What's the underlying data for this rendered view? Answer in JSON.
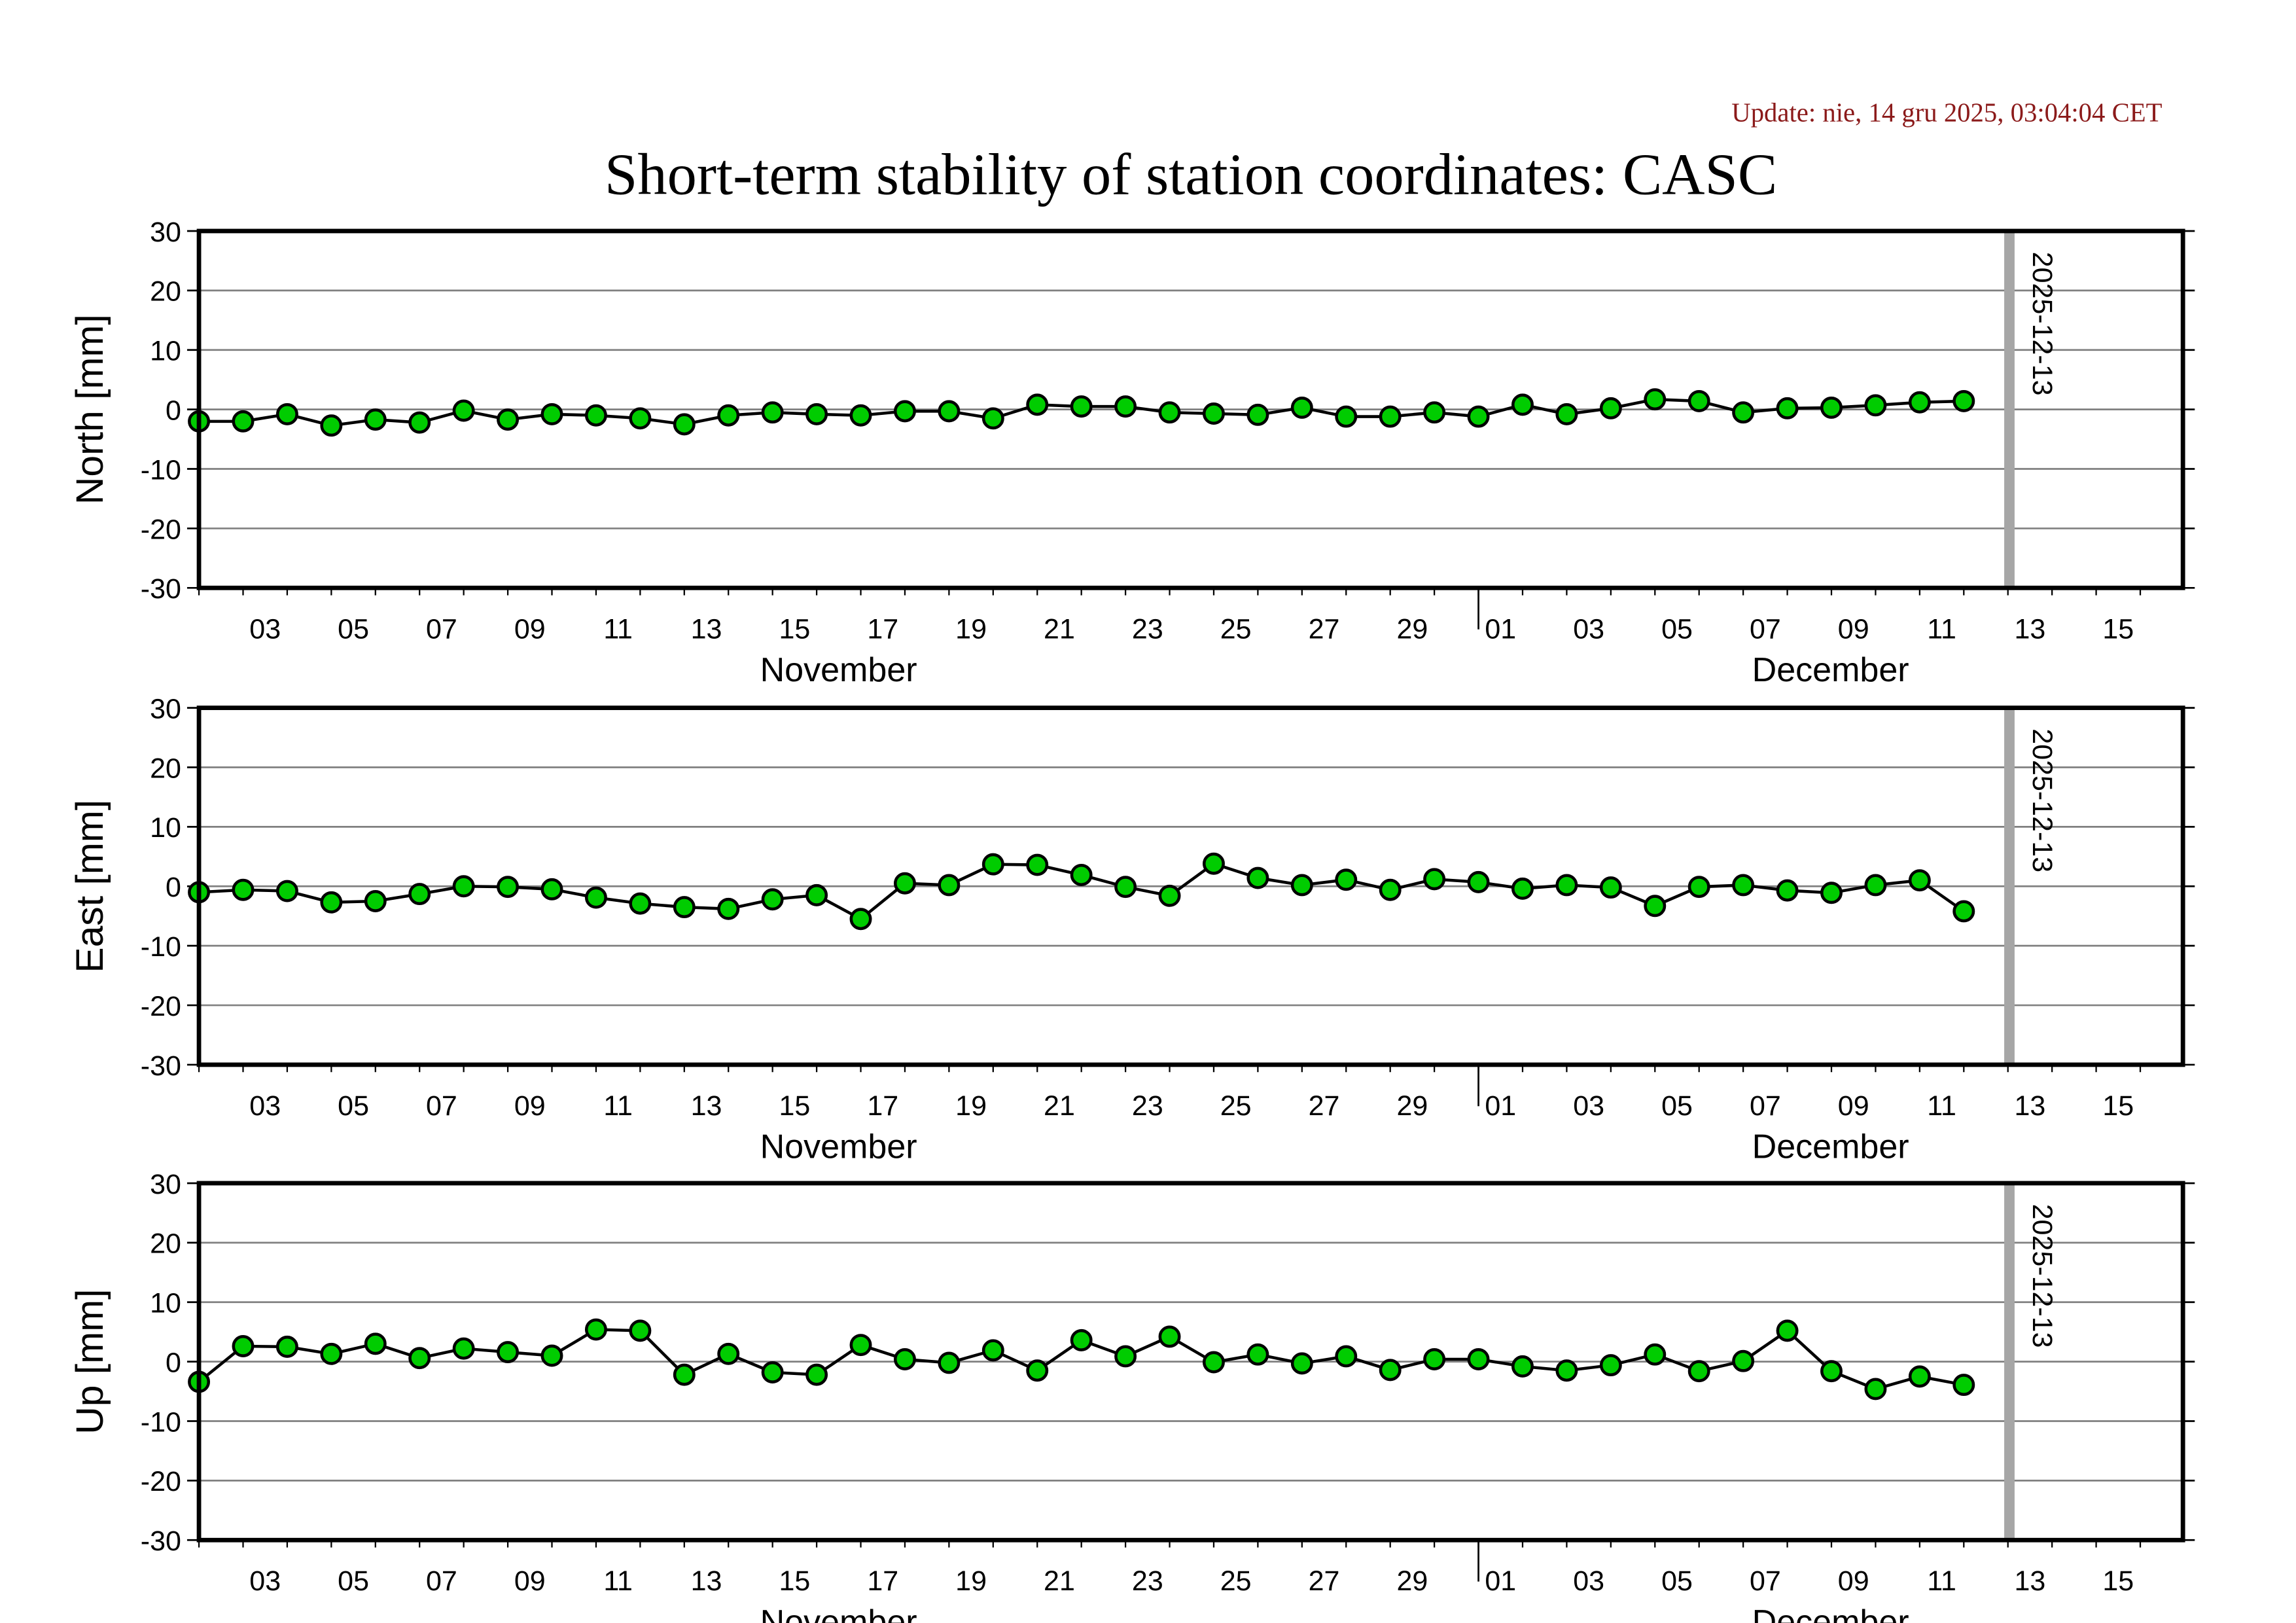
{
  "update_text": "Update: nie, 14 gru 2025, 03:04:04 CET",
  "colors": {
    "update": "#8b1a1a",
    "marker": "#00cc00",
    "grid": "#808080",
    "marker_line": "#a6a6a6"
  },
  "chart_data": [
    {
      "type": "line",
      "title": "Short-term stability of station coordinates: CASC",
      "ylabel": "North [mm]",
      "ylim": [
        -30,
        30
      ],
      "yticks": [
        "30",
        "20",
        "10",
        "0",
        "-10",
        "-20",
        "-30"
      ],
      "x_start": "2025-11-02",
      "x_end": "2025-12-16",
      "xtick_labels": [
        "03",
        "05",
        "07",
        "09",
        "11",
        "13",
        "15",
        "17",
        "19",
        "21",
        "23",
        "25",
        "27",
        "29",
        "01",
        "03",
        "05",
        "07",
        "09",
        "11",
        "13",
        "15"
      ],
      "months": [
        "November",
        "December"
      ],
      "marker_date_label": "2025-12-13",
      "values": [
        -2,
        -2,
        -0.8,
        -2.7,
        -1.7,
        -2.2,
        -0.2,
        -1.7,
        -0.8,
        -1,
        -1.5,
        -2.5,
        -1,
        -0.5,
        -0.8,
        -1,
        -0.3,
        -0.3,
        -1.5,
        0.8,
        0.5,
        0.5,
        -0.5,
        -0.7,
        -0.9,
        0.3,
        -1.2,
        -1.2,
        -0.5,
        -1.2,
        0.8,
        -0.8,
        0.2,
        1.7,
        1.4,
        -0.5,
        0.2,
        0.3,
        0.7,
        1.2,
        1.4
      ]
    },
    {
      "type": "line",
      "ylabel": "East [mm]",
      "ylim": [
        -30,
        30
      ],
      "yticks": [
        "30",
        "20",
        "10",
        "0",
        "-10",
        "-20",
        "-30"
      ],
      "x_start": "2025-11-02",
      "x_end": "2025-12-16",
      "xtick_labels": [
        "03",
        "05",
        "07",
        "09",
        "11",
        "13",
        "15",
        "17",
        "19",
        "21",
        "23",
        "25",
        "27",
        "29",
        "01",
        "03",
        "05",
        "07",
        "09",
        "11",
        "13",
        "15"
      ],
      "months": [
        "November",
        "December"
      ],
      "marker_date_label": "2025-12-13",
      "values": [
        -1,
        -0.6,
        -0.8,
        -2.7,
        -2.5,
        -1.3,
        0,
        -0.1,
        -0.5,
        -1.9,
        -2.9,
        -3.5,
        -3.8,
        -2.2,
        -1.5,
        -5.5,
        0.5,
        0.2,
        3.7,
        3.6,
        1.9,
        -0.1,
        -1.6,
        3.8,
        1.4,
        0.2,
        1.1,
        -0.6,
        1.2,
        0.7,
        -0.4,
        0.2,
        -0.2,
        -3.3,
        -0.1,
        0.2,
        -0.7,
        -1.1,
        0.2,
        1,
        -4.2
      ]
    },
    {
      "type": "line",
      "ylabel": "Up [mm]",
      "ylim": [
        -30,
        30
      ],
      "yticks": [
        "30",
        "20",
        "10",
        "0",
        "-10",
        "-20",
        "-30"
      ],
      "x_start": "2025-11-02",
      "x_end": "2025-12-16",
      "xtick_labels": [
        "03",
        "05",
        "07",
        "09",
        "11",
        "13",
        "15",
        "17",
        "19",
        "21",
        "23",
        "25",
        "27",
        "29",
        "01",
        "03",
        "05",
        "07",
        "09",
        "11",
        "13",
        "15"
      ],
      "months": [
        "November",
        "December"
      ],
      "marker_date_label": "2025-12-13",
      "values": [
        -3.4,
        2.6,
        2.5,
        1.3,
        3,
        0.6,
        2.2,
        1.6,
        1,
        5.4,
        5.2,
        -2.2,
        1.3,
        -1.8,
        -2.2,
        2.8,
        0.4,
        -0.2,
        1.9,
        -1.5,
        3.6,
        0.9,
        4.2,
        -0.1,
        1.2,
        -0.3,
        0.9,
        -1.4,
        0.4,
        0.4,
        -0.8,
        -1.5,
        -0.6,
        1.2,
        -1.6,
        0.1,
        5.2,
        -1.6,
        -4.6,
        -2.5,
        -3.9
      ]
    }
  ]
}
